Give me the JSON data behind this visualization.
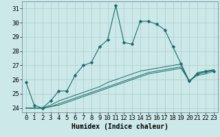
{
  "xlabel": "Humidex (Indice chaleur)",
  "background_color": "#cce8e8",
  "grid_color": "#aacfcf",
  "line_color": "#1a6b6b",
  "xlim": [
    -0.5,
    23.5
  ],
  "ylim": [
    23.7,
    31.5
  ],
  "yticks": [
    24,
    25,
    26,
    27,
    28,
    29,
    30,
    31
  ],
  "xticks": [
    0,
    1,
    2,
    3,
    4,
    5,
    6,
    7,
    8,
    9,
    10,
    11,
    12,
    13,
    14,
    15,
    16,
    17,
    18,
    19,
    20,
    21,
    22,
    23
  ],
  "series": [
    [
      25.8,
      24.2,
      24.0,
      24.5,
      25.2,
      25.2,
      26.3,
      27.0,
      27.2,
      28.3,
      28.8,
      31.2,
      28.6,
      28.5,
      30.1,
      30.1,
      29.9,
      29.5,
      28.3,
      27.1,
      25.9,
      26.4,
      26.6,
      26.6
    ],
    [
      24.0,
      24.0,
      24.0,
      24.2,
      24.5,
      24.7,
      24.9,
      25.1,
      25.3,
      25.5,
      25.8,
      26.0,
      26.2,
      26.4,
      26.6,
      26.7,
      26.8,
      26.9,
      27.0,
      27.1,
      25.8,
      26.5,
      26.6,
      26.7
    ],
    [
      24.0,
      24.0,
      24.0,
      24.1,
      24.3,
      24.5,
      24.7,
      24.9,
      25.1,
      25.3,
      25.5,
      25.7,
      25.9,
      26.1,
      26.3,
      26.5,
      26.6,
      26.7,
      26.8,
      26.9,
      25.9,
      26.4,
      26.5,
      26.7
    ],
    [
      24.0,
      24.0,
      24.0,
      24.1,
      24.2,
      24.4,
      24.6,
      24.8,
      25.0,
      25.2,
      25.4,
      25.6,
      25.8,
      26.0,
      26.2,
      26.4,
      26.5,
      26.6,
      26.7,
      26.8,
      25.9,
      26.3,
      26.4,
      26.6
    ]
  ],
  "font_size_xlabel": 7,
  "font_size_tick": 6.5
}
